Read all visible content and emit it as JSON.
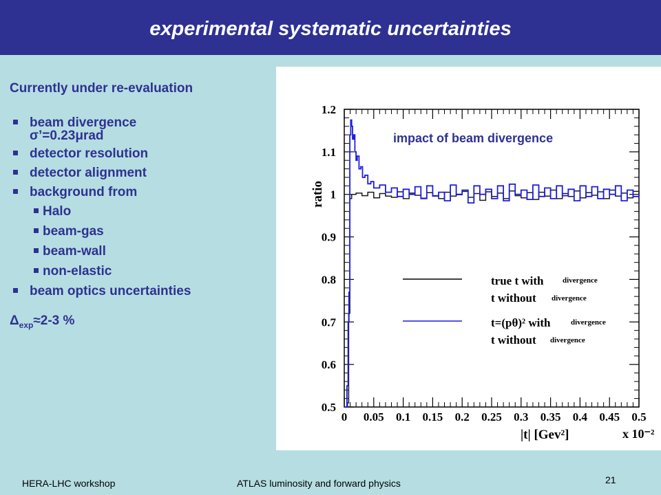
{
  "title": "experimental systematic uncertainties",
  "left": {
    "heading": "Currently under re-evaluation",
    "bullets": [
      {
        "line1": "beam divergence",
        "line2": "σ’=0.23μrad"
      },
      {
        "line1": "detector resolution"
      },
      {
        "line1": "detector alignment"
      },
      {
        "line1": "background from"
      }
    ],
    "sub_bullets": [
      "Halo",
      "beam-gas",
      "beam-wall",
      "non-elastic"
    ],
    "last_bullet": "beam optics uncertainties",
    "delta_symbol": "Δ",
    "delta_sub": "exp",
    "delta_value": "≈2-3 %"
  },
  "footer": {
    "left": "HERA-LHC workshop",
    "center": "ATLAS luminosity and forward physics",
    "page": "21"
  },
  "chart_data": {
    "type": "line",
    "annotation": "impact of beam divergence",
    "ylabel": "ratio",
    "xlabel": "|t| [Gev²]",
    "x_multiplier": "x 10⁻²",
    "xlim": [
      0,
      0.5
    ],
    "ylim": [
      0.5,
      1.2
    ],
    "x_ticks": [
      "0",
      "0.05",
      "0.1",
      "0.15",
      "0.2",
      "0.25",
      "0.3",
      "0.35",
      "0.4",
      "0.45",
      "0.5"
    ],
    "y_ticks": [
      "0.5",
      "0.6",
      "0.7",
      "0.8",
      "0.9",
      "1",
      "1.1",
      "1.2"
    ],
    "grid": false,
    "legend": [
      {
        "text_a": "true t with",
        "small_a": "divergence",
        "text_b": "t without",
        "small_b": "divergence",
        "color": "#000000"
      },
      {
        "text_a": "t=(pθ)² with",
        "small_a": "divergence",
        "text_b": "t without",
        "small_b": "divergence",
        "color": "#1c1ce0"
      }
    ],
    "series": [
      {
        "color": "#1a1a1a",
        "x": [
          0.0,
          0.0055,
          0.0075,
          0.0095,
          0.0125,
          0.02,
          0.03,
          0.04,
          0.05,
          0.06,
          0.07,
          0.08,
          0.09,
          0.1,
          0.11,
          0.12,
          0.13,
          0.14,
          0.15,
          0.16,
          0.17,
          0.18,
          0.19,
          0.2,
          0.21,
          0.22,
          0.23,
          0.24,
          0.25,
          0.26,
          0.27,
          0.28,
          0.29,
          0.3,
          0.31,
          0.32,
          0.33,
          0.34,
          0.35,
          0.36,
          0.37,
          0.38,
          0.39,
          0.4,
          0.41,
          0.42,
          0.43,
          0.44,
          0.45,
          0.46,
          0.47,
          0.48,
          0.49,
          0.5
        ],
        "y": [
          0.5,
          0.51,
          0.72,
          0.99,
          1.0,
          1.003,
          0.997,
          1.005,
          0.992,
          1.002,
          0.996,
          0.993,
          1.006,
          0.99,
          1.003,
          0.998,
          0.991,
          1.004,
          0.997,
          0.99,
          1.005,
          0.996,
          0.999,
          1.007,
          0.993,
          1.002,
          0.986,
          1.006,
          0.995,
          1.003,
          0.99,
          1.008,
          0.997,
          0.992,
          1.004,
          0.988,
          1.005,
          0.996,
          1.01,
          0.99,
          1.002,
          0.995,
          1.008,
          0.992,
          1.004,
          0.998,
          1.006,
          0.99,
          1.01,
          0.996,
          1.003,
          0.992,
          1.007,
          0.998
        ]
      },
      {
        "color": "#1c1ce0",
        "x": [
          0.0,
          0.0045,
          0.0065,
          0.008,
          0.0095,
          0.011,
          0.0125,
          0.014,
          0.016,
          0.018,
          0.02,
          0.022,
          0.025,
          0.028,
          0.031,
          0.035,
          0.04,
          0.045,
          0.05,
          0.06,
          0.07,
          0.08,
          0.09,
          0.1,
          0.11,
          0.12,
          0.13,
          0.14,
          0.15,
          0.16,
          0.17,
          0.18,
          0.19,
          0.2,
          0.21,
          0.22,
          0.23,
          0.24,
          0.25,
          0.26,
          0.27,
          0.28,
          0.29,
          0.3,
          0.31,
          0.32,
          0.33,
          0.34,
          0.35,
          0.36,
          0.37,
          0.38,
          0.39,
          0.4,
          0.41,
          0.42,
          0.43,
          0.44,
          0.45,
          0.46,
          0.47,
          0.48,
          0.49,
          0.5
        ],
        "y": [
          0.5,
          0.55,
          0.7,
          0.77,
          1.14,
          1.175,
          1.16,
          1.13,
          1.14,
          1.1,
          1.08,
          1.09,
          1.06,
          1.065,
          1.04,
          1.045,
          1.025,
          1.03,
          1.015,
          1.022,
          1.005,
          1.015,
          0.995,
          1.012,
          1.0,
          1.018,
          0.99,
          1.02,
          0.996,
          1.005,
          0.985,
          1.022,
          1.0,
          1.01,
          0.98,
          1.02,
          1.0,
          1.012,
          0.99,
          1.02,
          0.985,
          1.024,
          1.0,
          1.01,
          0.988,
          1.022,
          0.995,
          1.015,
          0.99,
          1.02,
          0.997,
          1.012,
          0.985,
          1.02,
          0.995,
          1.018,
          0.99,
          1.012,
          1.0,
          1.02,
          0.985,
          1.01,
          0.995,
          1.0
        ]
      }
    ]
  }
}
